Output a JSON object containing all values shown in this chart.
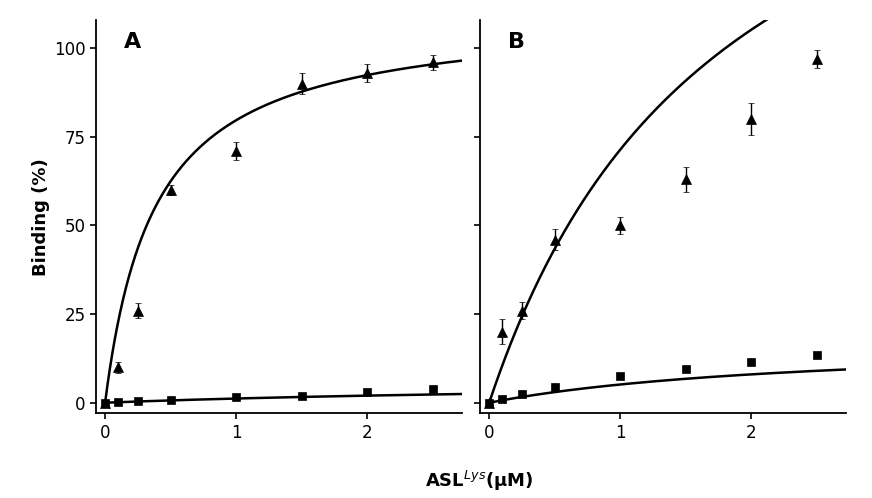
{
  "panel_A": {
    "triangle_x": [
      0.0,
      0.1,
      0.25,
      0.5,
      1.0,
      1.5,
      2.0,
      2.5
    ],
    "triangle_y": [
      0.0,
      10.0,
      26.0,
      60.0,
      71.0,
      90.0,
      93.0,
      96.0
    ],
    "triangle_yerr": [
      0.8,
      1.5,
      2.0,
      1.5,
      2.5,
      3.0,
      2.5,
      2.0
    ],
    "square_x": [
      0.0,
      0.1,
      0.25,
      0.5,
      1.0,
      1.5,
      2.0,
      2.5
    ],
    "square_y": [
      0.0,
      0.2,
      0.4,
      0.8,
      1.5,
      2.0,
      3.0,
      4.0
    ],
    "square_yerr": [
      0.3,
      0.2,
      0.2,
      0.3,
      0.3,
      0.3,
      0.4,
      0.4
    ],
    "fit_tri_Bmax": 110.0,
    "fit_tri_Kd": 0.38,
    "fit_sq_Bmax": 6.5,
    "fit_sq_Kd": 4.5
  },
  "panel_B": {
    "triangle_x": [
      0.0,
      0.1,
      0.25,
      0.5,
      1.0,
      1.5,
      2.0,
      2.5
    ],
    "triangle_y": [
      0.0,
      20.0,
      26.0,
      46.0,
      50.0,
      63.0,
      80.0,
      97.0
    ],
    "triangle_yerr": [
      0.8,
      3.5,
      2.5,
      3.0,
      2.5,
      3.5,
      4.5,
      2.5
    ],
    "square_x": [
      0.0,
      0.1,
      0.25,
      0.5,
      1.0,
      1.5,
      2.0,
      2.5
    ],
    "square_y": [
      0.0,
      1.0,
      2.5,
      4.5,
      7.5,
      9.5,
      11.5,
      13.5
    ],
    "square_yerr": [
      0.3,
      0.5,
      0.5,
      0.5,
      0.5,
      0.5,
      0.6,
      0.8
    ],
    "fit_tri_Bmax": 200.0,
    "fit_tri_Kd": 1.8,
    "fit_sq_Bmax": 18.0,
    "fit_sq_Kd": 2.5
  },
  "xlabel": "ASL$^{Lys}$(μM)",
  "ylabel": "Binding (%)",
  "ylim": [
    -3,
    108
  ],
  "xlim": [
    -0.07,
    2.72
  ],
  "yticks": [
    0,
    25,
    50,
    75,
    100
  ],
  "xticks": [
    0,
    1,
    2
  ],
  "color": "#000000",
  "background_color": "#ffffff",
  "label_fontsize": 13,
  "tick_fontsize": 12,
  "panel_labels": [
    "A",
    "B"
  ],
  "linewidth": 1.8,
  "markersize": 6.5
}
